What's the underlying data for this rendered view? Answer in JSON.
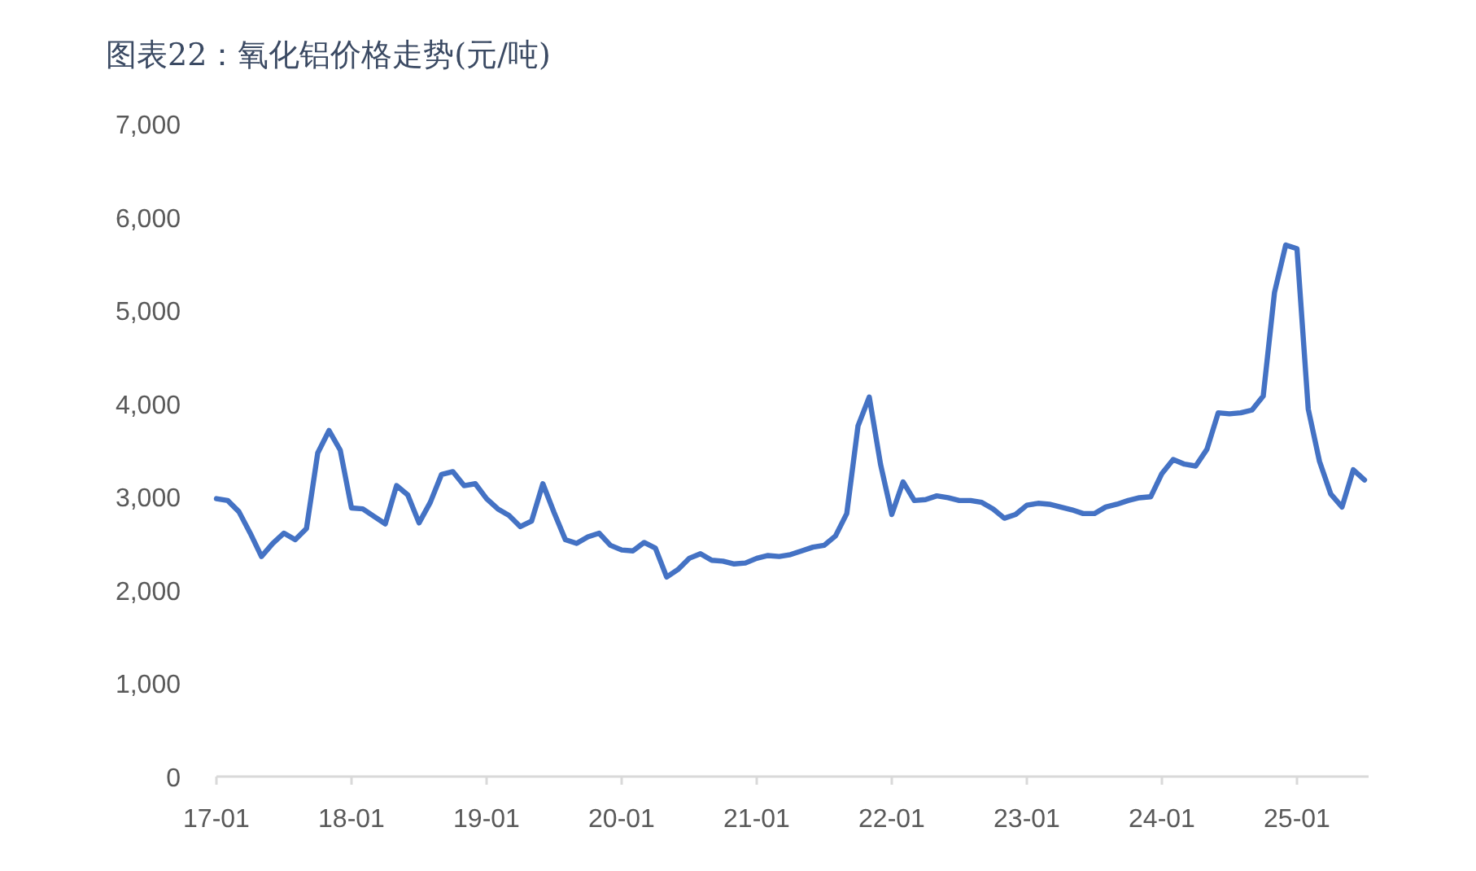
{
  "chart_data": {
    "type": "line",
    "title": "图表22：氧化铝价格走势(元/吨)",
    "categories": [
      "17-01",
      null,
      null,
      null,
      null,
      null,
      null,
      null,
      null,
      null,
      null,
      null,
      "18-01",
      null,
      null,
      null,
      null,
      null,
      null,
      null,
      null,
      null,
      null,
      null,
      "19-01",
      null,
      null,
      null,
      null,
      null,
      null,
      null,
      null,
      null,
      null,
      null,
      "20-01",
      null,
      null,
      null,
      null,
      null,
      null,
      null,
      null,
      null,
      null,
      null,
      "21-01",
      null,
      null,
      null,
      null,
      null,
      null,
      null,
      null,
      null,
      null,
      null,
      "22-01",
      null,
      null,
      null,
      null,
      null,
      null,
      null,
      null,
      null,
      null,
      null,
      "23-01",
      null,
      null,
      null,
      null,
      null,
      null,
      null,
      null,
      null,
      null,
      null,
      "24-01",
      null,
      null,
      null,
      null,
      null,
      null,
      null,
      null,
      null,
      null,
      null,
      "25-01",
      null,
      null,
      null,
      null,
      null,
      null
    ],
    "series": [
      {
        "color": "#4472c4",
        "values": [
          2980,
          2960,
          2840,
          2610,
          2360,
          2500,
          2610,
          2540,
          2660,
          3470,
          3710,
          3500,
          2880,
          2870,
          2790,
          2710,
          3120,
          3020,
          2720,
          2940,
          3240,
          3270,
          3120,
          3140,
          2980,
          2870,
          2800,
          2680,
          2740,
          3140,
          2830,
          2540,
          2500,
          2570,
          2610,
          2480,
          2430,
          2420,
          2510,
          2450,
          2140,
          2220,
          2340,
          2390,
          2320,
          2310,
          2280,
          2290,
          2340,
          2370,
          2360,
          2380,
          2420,
          2460,
          2480,
          2580,
          2820,
          3760,
          4070,
          3350,
          2810,
          3160,
          2960,
          2970,
          3010,
          2990,
          2960,
          2960,
          2940,
          2870,
          2770,
          2810,
          2910,
          2930,
          2920,
          2890,
          2860,
          2820,
          2820,
          2890,
          2920,
          2960,
          2990,
          3000,
          3250,
          3400,
          3350,
          3330,
          3510,
          3900,
          3890,
          3900,
          3930,
          4080,
          5190,
          5700,
          5660,
          3940,
          3380,
          3030,
          2890,
          3290,
          3180
        ]
      }
    ],
    "ylim": [
      0,
      7000
    ],
    "yticks": [
      0,
      {
        "value": 1000,
        "label": "1,000"
      },
      {
        "value": 2000,
        "label": "2,000"
      },
      {
        "value": 3000,
        "label": "3,000"
      },
      {
        "value": 4000,
        "label": "4,000"
      },
      {
        "value": 5000,
        "label": "5,000"
      },
      {
        "value": 6000,
        "label": "6,000"
      },
      {
        "value": 7000,
        "label": "7,000"
      }
    ],
    "line_style": "solid"
  }
}
